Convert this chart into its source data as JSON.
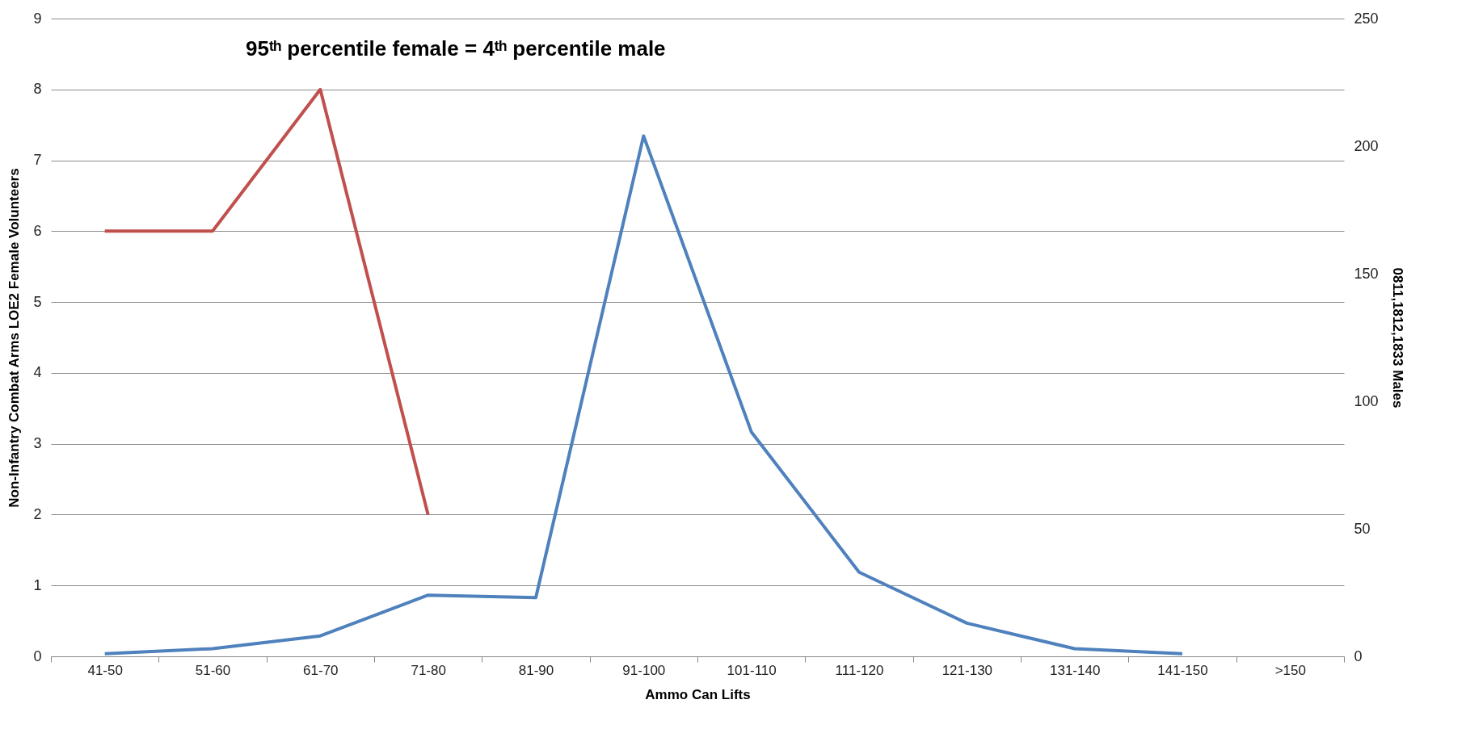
{
  "chart_data": {
    "type": "line",
    "title": "95ᵗʰ percentile female = 4ᵗʰ percentile male",
    "xlabel": "Ammo Can Lifts",
    "ylabel": "Non-Infantry Combat Arms LOE2 Female Volunteers",
    "y2label": "0811,1812,1833 Males",
    "categories": [
      "41-50",
      "51-60",
      "61-70",
      "71-80",
      "81-90",
      "91-100",
      "101-110",
      "111-120",
      "121-130",
      "131-140",
      "141-150",
      ">150"
    ],
    "series": [
      {
        "color": "#c0504d",
        "values": [
          6,
          6,
          8,
          2,
          null,
          null,
          null,
          null,
          null,
          null,
          null,
          null
        ]
      },
      {
        "color": "#4f81bd",
        "axis": "y2",
        "values": [
          1,
          3,
          8,
          24,
          23,
          204,
          88,
          33,
          13,
          3,
          1,
          null
        ]
      }
    ],
    "ylim": [
      0,
      9
    ],
    "yticks": [
      0,
      1,
      2,
      3,
      4,
      5,
      6,
      7,
      8,
      9
    ],
    "y2lim": [
      0,
      250
    ],
    "y2ticks": [
      0,
      50,
      100,
      150,
      200,
      250
    ],
    "grid": "y",
    "marker": "none",
    "line_style": "solid"
  }
}
